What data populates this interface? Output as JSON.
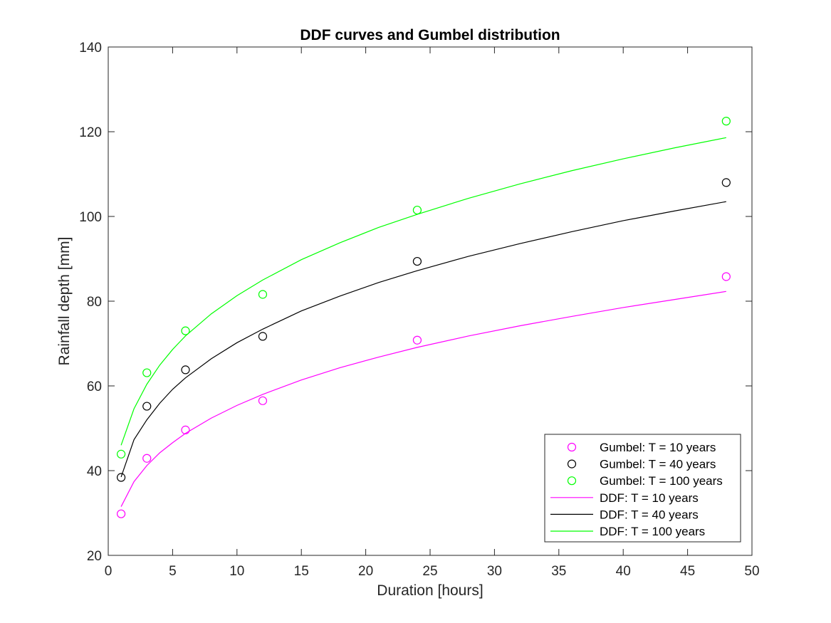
{
  "chart_data": {
    "type": "line",
    "title": "DDF curves and Gumbel distribution",
    "xlabel": "Duration [hours]",
    "ylabel": "Rainfall depth [mm]",
    "xlim": [
      0,
      50
    ],
    "ylim": [
      20,
      140
    ],
    "xticks": [
      0,
      5,
      10,
      15,
      20,
      25,
      30,
      35,
      40,
      45,
      50
    ],
    "yticks": [
      20,
      40,
      60,
      80,
      100,
      120,
      140
    ],
    "grid": false,
    "legend_location": "bottom-right",
    "points": [
      {
        "name": "Gumbel: T = 10 years",
        "color": "#ff00ff",
        "x": [
          1,
          3,
          6,
          12,
          24,
          48
        ],
        "y": [
          29.8,
          42.9,
          49.6,
          56.5,
          70.8,
          85.8
        ]
      },
      {
        "name": "Gumbel: T = 40 years",
        "color": "#000000",
        "x": [
          1,
          3,
          6,
          12,
          24,
          48
        ],
        "y": [
          38.4,
          55.2,
          63.8,
          71.7,
          89.4,
          108.0
        ]
      },
      {
        "name": "Gumbel: T = 100 years",
        "color": "#00ff00",
        "x": [
          1,
          3,
          6,
          12,
          24,
          48
        ],
        "y": [
          43.9,
          63.1,
          73.0,
          81.6,
          101.5,
          122.5
        ]
      }
    ],
    "curves": [
      {
        "name": "DDF: T = 10 years",
        "color": "#ff00ff",
        "x": [
          1,
          2,
          3,
          4,
          5,
          6,
          8,
          10,
          12,
          15,
          18,
          21,
          24,
          28,
          32,
          36,
          40,
          44,
          48
        ],
        "y": [
          31.5,
          37.4,
          41.2,
          44.2,
          46.6,
          48.8,
          52.4,
          55.4,
          58.0,
          61.4,
          64.3,
          66.8,
          69.1,
          71.8,
          74.2,
          76.4,
          78.5,
          80.4,
          82.3
        ]
      },
      {
        "name": "DDF: T = 40 years",
        "color": "#000000",
        "x": [
          1,
          2,
          3,
          4,
          5,
          6,
          8,
          10,
          12,
          15,
          18,
          21,
          24,
          28,
          32,
          36,
          40,
          44,
          48
        ],
        "y": [
          38.5,
          47.3,
          52.0,
          55.9,
          59.2,
          61.9,
          66.4,
          70.2,
          73.4,
          77.7,
          81.2,
          84.4,
          87.2,
          90.6,
          93.6,
          96.4,
          99.0,
          101.3,
          103.5
        ]
      },
      {
        "name": "DDF: T = 100 years",
        "color": "#00ff00",
        "x": [
          1,
          2,
          3,
          4,
          5,
          6,
          8,
          10,
          12,
          15,
          18,
          21,
          24,
          28,
          32,
          36,
          40,
          44,
          48
        ],
        "y": [
          46.0,
          54.6,
          60.4,
          64.9,
          68.6,
          71.8,
          77.0,
          81.3,
          85.0,
          89.8,
          93.8,
          97.4,
          100.5,
          104.3,
          107.7,
          110.8,
          113.6,
          116.2,
          118.6
        ]
      }
    ]
  }
}
